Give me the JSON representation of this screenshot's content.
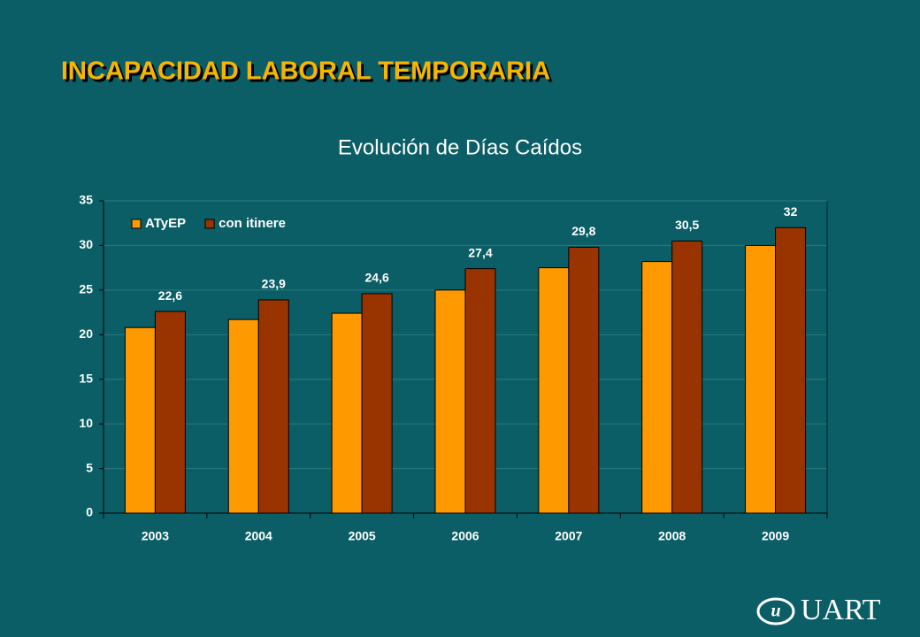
{
  "slide_title": "INCAPACIDAD LABORAL TEMPORARIA",
  "logo": "UART",
  "chart_data": {
    "type": "bar",
    "title": "Evolución de Días Caídos",
    "categories": [
      "2003",
      "2004",
      "2005",
      "2006",
      "2007",
      "2008",
      "2009"
    ],
    "series": [
      {
        "name": "ATyEP",
        "color": "#ff9900",
        "values": [
          20.8,
          21.7,
          22.4,
          25.0,
          27.5,
          28.2,
          30.0
        ]
      },
      {
        "name": "con itinere",
        "color": "#993300",
        "values": [
          22.6,
          23.9,
          24.6,
          27.4,
          29.8,
          30.5,
          32
        ],
        "value_labels": [
          "22,6",
          "23,9",
          "24,6",
          "27,4",
          "29,8",
          "30,5",
          "32"
        ]
      }
    ],
    "ylim": [
      0,
      35
    ],
    "yticks": [
      0,
      5,
      10,
      15,
      20,
      25,
      30,
      35
    ],
    "grid": true,
    "legend": "upper left"
  }
}
